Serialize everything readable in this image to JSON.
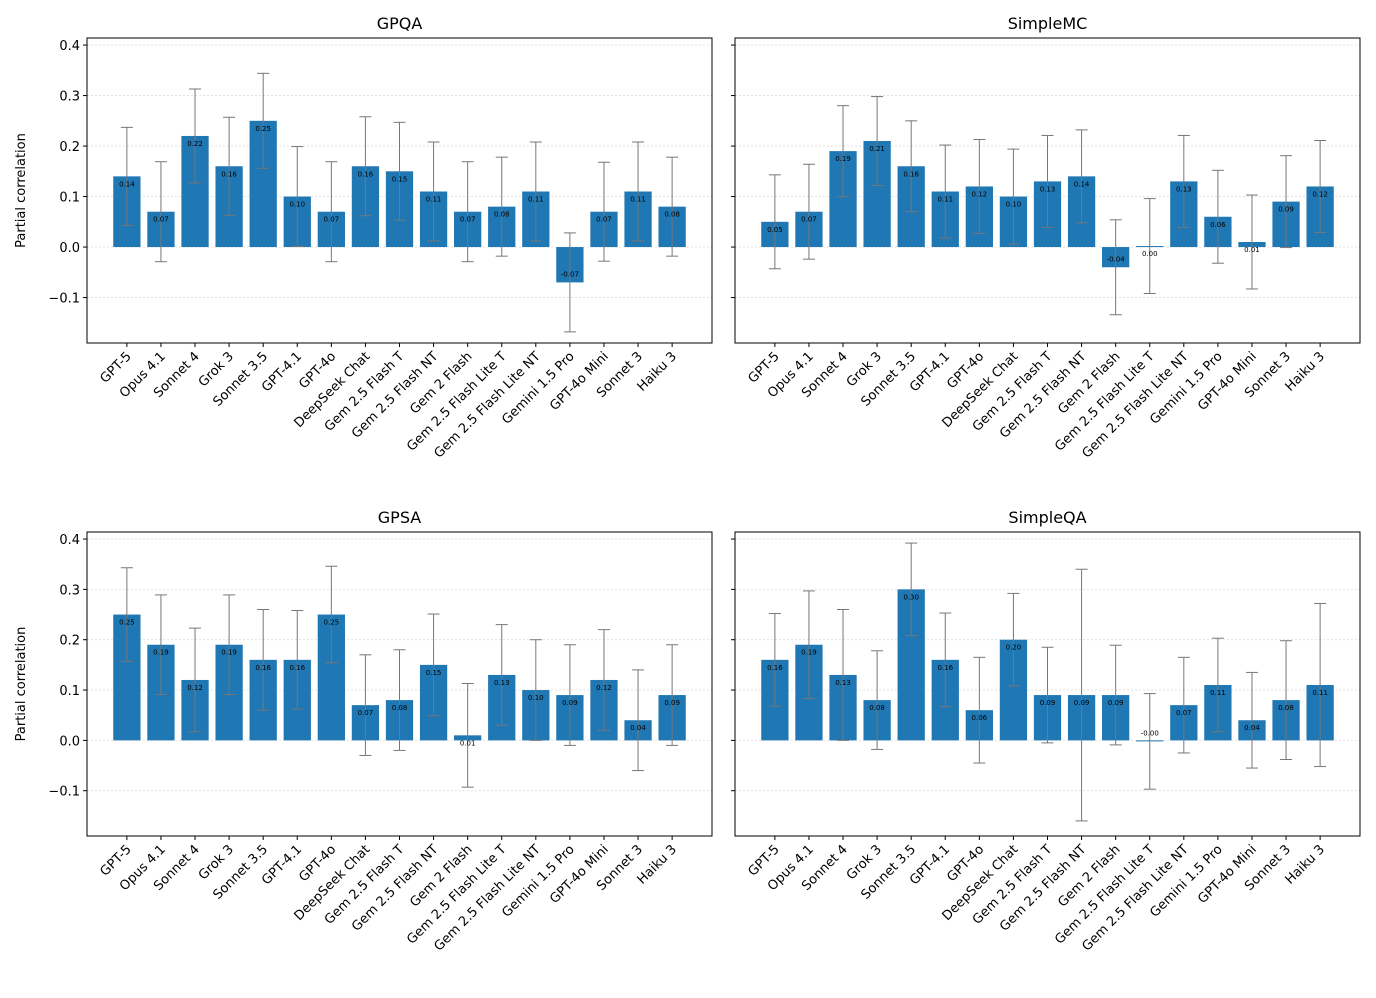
{
  "chart_data": [
    {
      "type": "bar",
      "title": "GPQA",
      "ylabel": "Partial correlation",
      "categories": [
        "GPT-5",
        "Opus 4.1",
        "Sonnet 4",
        "Grok 3",
        "Sonnet 3.5",
        "GPT-4.1",
        "GPT-4o",
        "DeepSeek Chat",
        "Gem 2.5 Flash T",
        "Gem 2.5 Flash NT",
        "Gem 2 Flash",
        "Gem 2.5 Flash Lite T",
        "Gem 2.5 Flash Lite NT",
        "Gemini 1.5 Pro",
        "GPT-4o Mini",
        "Sonnet 3",
        "Haiku 3"
      ],
      "values": [
        0.14,
        0.07,
        0.22,
        0.16,
        0.25,
        0.1,
        0.07,
        0.16,
        0.15,
        0.11,
        0.07,
        0.08,
        0.11,
        -0.07,
        0.07,
        0.11,
        0.08
      ],
      "value_labels": [
        "0.14",
        "0.07",
        "0.22",
        "0.16",
        "0.25",
        "0.10",
        "0.07",
        "0.16",
        "0.15",
        "0.11",
        "0.07",
        "0.08",
        "0.11",
        "-0.07",
        "0.07",
        "0.11",
        "0.08"
      ],
      "errors": [
        0.097,
        0.099,
        0.093,
        0.097,
        0.094,
        0.099,
        0.099,
        0.098,
        0.097,
        0.098,
        0.099,
        0.098,
        0.098,
        0.098,
        0.098,
        0.098,
        0.098
      ],
      "color": "#1f77b4",
      "error_color": "#777777",
      "ylim": [
        -0.19,
        0.414
      ],
      "yticks": [
        {
          "value": -0.1,
          "label": "−0.1"
        },
        {
          "value": 0,
          "label": "0.0"
        },
        {
          "value": 0.1,
          "label": "0.1"
        },
        {
          "value": 0.2,
          "label": "0.2"
        },
        {
          "value": 0.3,
          "label": "0.3"
        },
        {
          "value": 0.4,
          "label": "0.4"
        }
      ],
      "grid": true
    },
    {
      "type": "bar",
      "title": "SimpleMC",
      "categories": [
        "GPT-5",
        "Opus 4.1",
        "Sonnet 4",
        "Grok 3",
        "Sonnet 3.5",
        "GPT-4.1",
        "GPT-4o",
        "DeepSeek Chat",
        "Gem 2.5 Flash T",
        "Gem 2.5 Flash NT",
        "Gem 2 Flash",
        "Gem 2.5 Flash Lite T",
        "Gem 2.5 Flash Lite NT",
        "Gemini 1.5 Pro",
        "GPT-4o Mini",
        "Sonnet 3",
        "Haiku 3"
      ],
      "values": [
        0.05,
        0.07,
        0.19,
        0.21,
        0.16,
        0.11,
        0.12,
        0.1,
        0.13,
        0.14,
        -0.04,
        0.002,
        0.13,
        0.06,
        0.01,
        0.09,
        0.12
      ],
      "value_labels": [
        "0.05",
        "0.07",
        "0.19",
        "0.21",
        "0.16",
        "0.11",
        "0.12",
        "0.10",
        "0.13",
        "0.14",
        "-0.04",
        "0.00",
        "0.13",
        "0.06",
        "0.01",
        "0.09",
        "0.12"
      ],
      "errors": [
        0.093,
        0.094,
        0.09,
        0.088,
        0.09,
        0.092,
        0.093,
        0.094,
        0.091,
        0.092,
        0.094,
        0.094,
        0.091,
        0.092,
        0.093,
        0.091,
        0.091
      ],
      "color": "#1f77b4",
      "error_color": "#777777",
      "ylim": [
        -0.19,
        0.414
      ],
      "yticks": [
        -0.1,
        0,
        0.1,
        0.2,
        0.3,
        0.4
      ],
      "grid": true
    },
    {
      "type": "bar",
      "title": "GPSA",
      "ylabel": "Partial correlation",
      "categories": [
        "GPT-5",
        "Opus 4.1",
        "Sonnet 4",
        "Grok 3",
        "Sonnet 3.5",
        "GPT-4.1",
        "GPT-4o",
        "DeepSeek Chat",
        "Gem 2.5 Flash T",
        "Gem 2.5 Flash NT",
        "Gem 2 Flash",
        "Gem 2.5 Flash Lite T",
        "Gem 2.5 Flash Lite NT",
        "Gemini 1.5 Pro",
        "GPT-4o Mini",
        "Sonnet 3",
        "Haiku 3"
      ],
      "values": [
        0.25,
        0.19,
        0.12,
        0.19,
        0.16,
        0.16,
        0.25,
        0.07,
        0.08,
        0.15,
        0.01,
        0.13,
        0.1,
        0.09,
        0.12,
        0.04,
        0.09
      ],
      "value_labels": [
        "0.25",
        "0.19",
        "0.12",
        "0.19",
        "0.16",
        "0.16",
        "0.25",
        "0.07",
        "0.08",
        "0.15",
        "0.01",
        "0.13",
        "0.10",
        "0.09",
        "0.12",
        "0.04",
        "0.09"
      ],
      "errors": [
        0.093,
        0.099,
        0.103,
        0.099,
        0.1,
        0.098,
        0.096,
        0.1,
        0.1,
        0.101,
        0.103,
        0.1,
        0.1,
        0.1,
        0.1,
        0.1,
        0.1
      ],
      "color": "#1f77b4",
      "error_color": "#777777",
      "ylim": [
        -0.19,
        0.414
      ],
      "yticks": [
        {
          "value": -0.1,
          "label": "−0.1"
        },
        {
          "value": 0,
          "label": "0.0"
        },
        {
          "value": 0.1,
          "label": "0.1"
        },
        {
          "value": 0.2,
          "label": "0.2"
        },
        {
          "value": 0.3,
          "label": "0.3"
        },
        {
          "value": 0.4,
          "label": "0.4"
        }
      ],
      "grid": true
    },
    {
      "type": "bar",
      "title": "SimpleQA",
      "categories": [
        "GPT-5",
        "Opus 4.1",
        "Sonnet 4",
        "Grok 3",
        "Sonnet 3.5",
        "GPT-4.1",
        "GPT-4o",
        "DeepSeek Chat",
        "Gem 2.5 Flash T",
        "Gem 2.5 Flash NT",
        "Gem 2 Flash",
        "Gem 2.5 Flash Lite T",
        "Gem 2.5 Flash Lite NT",
        "Gemini 1.5 Pro",
        "GPT-4o Mini",
        "Sonnet 3",
        "Haiku 3"
      ],
      "values": [
        0.16,
        0.19,
        0.13,
        0.08,
        0.3,
        0.16,
        0.06,
        0.2,
        0.09,
        0.09,
        0.09,
        -0.002,
        0.07,
        0.11,
        0.04,
        0.08,
        0.11
      ],
      "value_labels": [
        "0.16",
        "0.19",
        "0.13",
        "0.08",
        "0.30",
        "0.16",
        "0.06",
        "0.20",
        "0.09",
        "0.09",
        "0.09",
        "-0.00",
        "0.07",
        "0.11",
        "0.04",
        "0.08",
        "0.11"
      ],
      "errors": [
        0.092,
        0.107,
        0.13,
        0.098,
        0.092,
        0.093,
        0.105,
        0.092,
        0.095,
        0.25,
        0.099,
        0.095,
        0.095,
        0.093,
        0.095,
        0.118,
        0.162
      ],
      "color": "#1f77b4",
      "error_color": "#777777",
      "ylim": [
        -0.19,
        0.414
      ],
      "yticks": [
        -0.1,
        0,
        0.1,
        0.2,
        0.3,
        0.4
      ],
      "grid": true
    }
  ]
}
